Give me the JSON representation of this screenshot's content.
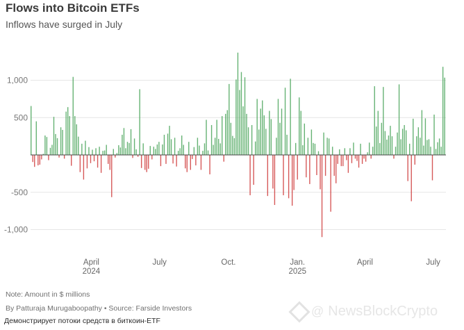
{
  "header": {
    "title": "Flows into Bitcoin ETFs",
    "subtitle": "Inflows have surged in July"
  },
  "footer": {
    "note": "Note: Amount in $ millions",
    "byline": "By Patturaja Murugaboopathy  • Source: Farside Investors",
    "caption": "Демонстрирует потоки средств в биткоин-ETF"
  },
  "watermark": {
    "text": "NewsBlockCrypto"
  },
  "colors": {
    "positive": "#4aa55a",
    "negative": "#cf3b3b",
    "grid": "#e6e6e6",
    "zero": "#444444"
  },
  "chart_data": {
    "type": "bar",
    "title": "Flows into Bitcoin ETFs",
    "subtitle": "Inflows have surged in July",
    "ylabel": "",
    "unit": "$ millions",
    "ylim": [
      -1100,
      1400
    ],
    "yticks": [
      {
        "value": 1000,
        "label": "1,000"
      },
      {
        "value": 500,
        "label": "500"
      },
      {
        "value": -500,
        "label": "-500"
      },
      {
        "value": -1000,
        "label": "-1,000"
      }
    ],
    "xrange": [
      "2024-01-11",
      "2025-07-18"
    ],
    "xticks": [
      {
        "date": "2024-04-01",
        "label": "April",
        "sublabel": "2024"
      },
      {
        "date": "2024-07-01",
        "label": "July",
        "sublabel": ""
      },
      {
        "date": "2024-10-01",
        "label": "Oct.",
        "sublabel": ""
      },
      {
        "date": "2025-01-01",
        "label": "Jan.",
        "sublabel": "2025"
      },
      {
        "date": "2025-04-01",
        "label": "April",
        "sublabel": ""
      },
      {
        "date": "2025-07-01",
        "label": "July",
        "sublabel": ""
      }
    ],
    "grid": true,
    "series": [
      {
        "values": [
          655,
          -95,
          -160,
          450,
          -140,
          -130,
          -60,
          15,
          260,
          240,
          -70,
          95,
          135,
          510,
          280,
          225,
          -35,
          370,
          335,
          -50,
          580,
          640,
          520,
          -145,
          1045,
          520,
          410,
          245,
          -230,
          150,
          -330,
          190,
          -180,
          105,
          -110,
          70,
          -85,
          90,
          -170,
          110,
          -240,
          55,
          60,
          135,
          -120,
          -200,
          -565,
          80,
          -35,
          25,
          130,
          100,
          270,
          360,
          90,
          175,
          160,
          345,
          -40,
          220,
          75,
          -25,
          880,
          -175,
          155,
          -200,
          -230,
          -185,
          120,
          -60,
          110,
          80,
          140,
          175,
          -150,
          140,
          270,
          -120,
          285,
          390,
          210,
          -115,
          230,
          -155,
          55,
          90,
          260,
          135,
          -180,
          -230,
          175,
          -200,
          -55,
          105,
          -140,
          230,
          125,
          -200,
          55,
          155,
          470,
          60,
          -260,
          400,
          135,
          230,
          470,
          215,
          155,
          520,
          -90,
          550,
          600,
          950,
          430,
          255,
          225,
          1010,
          1370,
          870,
          1110,
          650,
          1040,
          550,
          370,
          -540,
          400,
          -400,
          180,
          750,
          340,
          620,
          730,
          530,
          350,
          -550,
          590,
          480,
          -450,
          -670,
          230,
          750,
          430,
          620,
          -540,
          900,
          270,
          -580,
          1020,
          -680,
          -470,
          160,
          -330,
          770,
          590,
          130,
          420,
          -300,
          230,
          -390,
          340,
          160,
          150,
          -270,
          50,
          -460,
          -1100,
          300,
          -280,
          230,
          220,
          -760,
          110,
          -280,
          -380,
          -120,
          75,
          -150,
          -150,
          90,
          -70,
          -240,
          90,
          -110,
          165,
          -50,
          -80,
          -170,
          150,
          -120,
          -50,
          -90,
          35,
          165,
          -50,
          110,
          920,
          380,
          590,
          160,
          430,
          910,
          320,
          205,
          260,
          390,
          250,
          -50,
          110,
          300,
          945,
          210,
          350,
          400,
          330,
          -350,
          150,
          -620,
          485,
          -130,
          250,
          370,
          230,
          600,
          125,
          490,
          200,
          210,
          110,
          -340,
          540,
          80,
          170,
          220,
          110,
          1180,
          1035
        ]
      }
    ]
  }
}
